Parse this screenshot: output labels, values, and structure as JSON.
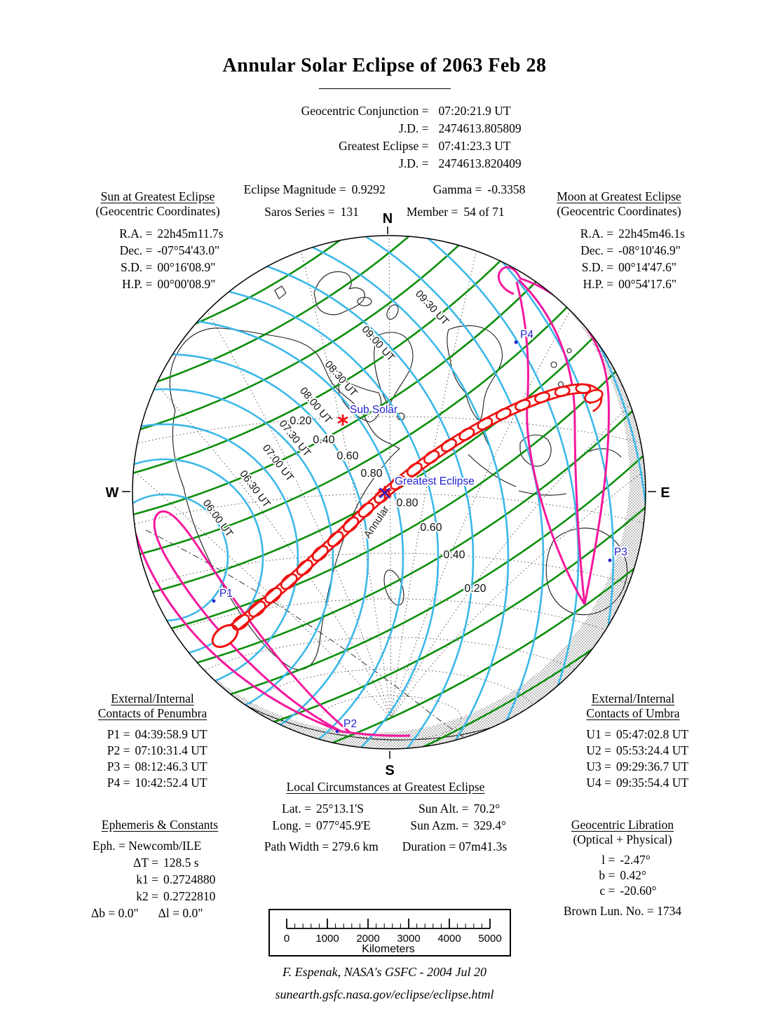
{
  "title": "Annular Solar Eclipse of  2063 Feb 28",
  "header": {
    "rows": [
      {
        "k": "Geocentric Conjunction =",
        "v": "07:20:21.9 UT",
        "k2": "J.D. =",
        "v2": "2474613.805809"
      },
      {
        "k": "Greatest Eclipse =",
        "v": "07:41:23.3 UT",
        "k2": "J.D. =",
        "v2": "2474613.820409"
      }
    ],
    "row3": {
      "k": "Eclipse Magnitude =",
      "v": "0.9292",
      "k2": "Gamma =",
      "v2": "-0.3358"
    },
    "row4": {
      "k": "Saros Series =",
      "v": "131",
      "k2": "Member =",
      "v2": "54 of 71"
    }
  },
  "sun_block": {
    "title": "Sun at Greatest Eclipse",
    "subtitle": "(Geocentric Coordinates)",
    "rows": [
      {
        "k": "R.A. =",
        "v": "22h45m11.7s"
      },
      {
        "k": "Dec. =",
        "v": "-07°54'43.0\""
      },
      {
        "k": "S.D. =",
        "v": "00°16'08.9\""
      },
      {
        "k": "H.P. =",
        "v": "00°00'08.9\""
      }
    ]
  },
  "moon_block": {
    "title": "Moon at Greatest Eclipse",
    "subtitle": "(Geocentric Coordinates)",
    "rows": [
      {
        "k": "R.A. =",
        "v": "22h45m46.1s"
      },
      {
        "k": "Dec. =",
        "v": "-08°10'46.9\""
      },
      {
        "k": "S.D. =",
        "v": "00°14'47.6\""
      },
      {
        "k": "H.P. =",
        "v": "00°54'17.6\""
      }
    ]
  },
  "penumbra_contacts": {
    "title_line1": "External/Internal",
    "title_line2": "Contacts of Penumbra",
    "rows": [
      {
        "k": "P1 =",
        "v": "04:39:58.9 UT"
      },
      {
        "k": "P2 =",
        "v": "07:10:31.4 UT"
      },
      {
        "k": "P3 =",
        "v": "08:12:46.3 UT"
      },
      {
        "k": "P4 =",
        "v": "10:42:52.4 UT"
      }
    ]
  },
  "umbra_contacts": {
    "title_line1": "External/Internal",
    "title_line2": "Contacts of Umbra",
    "rows": [
      {
        "k": "U1 =",
        "v": "05:47:02.8 UT"
      },
      {
        "k": "U2 =",
        "v": "05:53:24.4 UT"
      },
      {
        "k": "U3 =",
        "v": "09:29:36.7 UT"
      },
      {
        "k": "U4 =",
        "v": "09:35:54.4 UT"
      }
    ]
  },
  "local_circumstances": {
    "title": "Local Circumstances at Greatest Eclipse",
    "left_rows": [
      {
        "k": "Lat. =",
        "v": "25°13.1'S"
      },
      {
        "k": "Long. =",
        "v": "077°45.9'E"
      }
    ],
    "right_rows": [
      {
        "k": "Sun Alt. =",
        "v": "70.2°"
      },
      {
        "k": "Sun Azm. =",
        "v": "329.4°"
      }
    ],
    "bottom": [
      {
        "k": "Path Width =",
        "v": "279.6 km"
      },
      {
        "k": "Duration =",
        "v": "07m41.3s"
      }
    ]
  },
  "ephemeris": {
    "title": "Ephemeris & Constants",
    "row1": {
      "k": "Eph. =",
      "v": "Newcomb/ILE"
    },
    "mid_rows": [
      {
        "k": "ΔT =",
        "v": "128.5 s"
      },
      {
        "k": "k1 =",
        "v": "0.2724880"
      },
      {
        "k": "k2 =",
        "v": "0.2722810"
      }
    ],
    "row5": [
      {
        "k": "Δb =",
        "v": "0.0\""
      },
      {
        "k": "Δl =",
        "v": "0.0\""
      }
    ]
  },
  "libration": {
    "title": "Geocentric Libration",
    "subtitle": "(Optical + Physical)",
    "rows": [
      {
        "k": "l =",
        "v": "-2.47°"
      },
      {
        "k": "b =",
        "v": "0.42°"
      },
      {
        "k": "c =",
        "v": "-20.60°"
      }
    ],
    "brown": "Brown Lun. No. = 1734"
  },
  "map": {
    "compass": {
      "north": "N",
      "south": "S",
      "west": "W",
      "east": "E"
    },
    "markers": {
      "sub_solar": "Sub Solar",
      "greatest_eclipse": "Greatest Eclipse",
      "p1": "P1",
      "p2": "P2",
      "p3": "P3",
      "p4": "P4"
    },
    "path_label": "Annular",
    "ut_labels": [
      "06:00 UT",
      "06:30 UT",
      "07:00 UT",
      "07:30 UT",
      "08:00 UT",
      "08:30 UT",
      "09:00 UT",
      "09:30 UT"
    ],
    "magnitude_labels_upper": [
      "0.20",
      "0.40",
      "0.60",
      "0.80"
    ],
    "magnitude_labels_lower": [
      "0.80",
      "0.60",
      "0.40",
      "0.20"
    ],
    "colors": {
      "ut_curve": "#3bb8e8",
      "magnitude_curve": "#0b8e0b",
      "central_path": "#ee1111",
      "penumbral_limit": "#f5189d",
      "label_blue": "#2222cc"
    }
  },
  "scale_bar": {
    "ticks": [
      "0",
      "1000",
      "2000",
      "3000",
      "4000",
      "5000"
    ],
    "unit": "Kilometers"
  },
  "footer": {
    "credit": "F. Espenak, NASA's GSFC -  2004 Jul 20",
    "url": "sunearth.gsfc.nasa.gov/eclipse/eclipse.html"
  }
}
